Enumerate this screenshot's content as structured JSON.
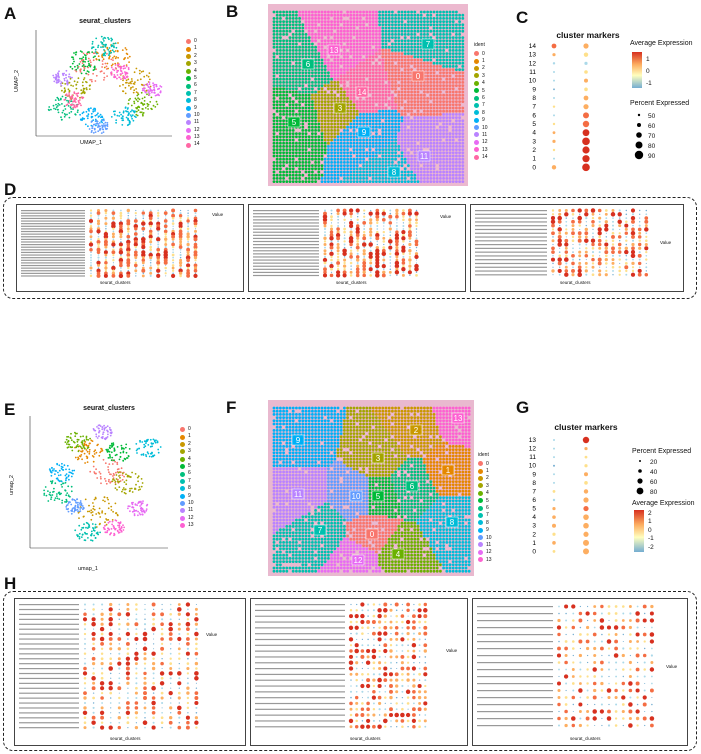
{
  "panels": {
    "A": {
      "letter": "A",
      "title": "seurat_clusters",
      "xlabel": "UMAP_1",
      "ylabel": "UMAP_2",
      "xticks": [
        "-8",
        "-4",
        "0",
        "4",
        "8"
      ],
      "yticks": [
        "10",
        "5",
        "0",
        "-5"
      ],
      "legend": [
        "0",
        "1",
        "2",
        "3",
        "4",
        "5",
        "6",
        "7",
        "8",
        "9",
        "10",
        "11",
        "12",
        "13",
        "14"
      ]
    },
    "B": {
      "letter": "B",
      "legend_title": "ident",
      "legend": [
        "0",
        "1",
        "2",
        "3",
        "4",
        "5",
        "6",
        "7",
        "8",
        "9",
        "10",
        "11",
        "12",
        "13",
        "14"
      ],
      "labels": [
        "13",
        "7",
        "0",
        "6",
        "14",
        "3",
        "5",
        "9",
        "11",
        "8"
      ]
    },
    "C": {
      "letter": "C",
      "title": "cluster markers",
      "ylabels": [
        "14",
        "13",
        "12",
        "11",
        "10",
        "9",
        "8",
        "7",
        "6",
        "5",
        "4",
        "3",
        "2",
        "1",
        "0"
      ],
      "genes": [
        "TSPAN4",
        "ITGA5"
      ],
      "legend_avg": "Average Expression",
      "avg_ticks": [
        "1",
        "0",
        "-1"
      ],
      "legend_pct": "Percent Expressed",
      "pct_ticks": [
        "50",
        "60",
        "70",
        "80",
        "90"
      ]
    },
    "D": {
      "letter": "D",
      "xlabel": "seurat_clusters",
      "ylabel": "Metabolic Pathway",
      "legend_value": "Value"
    },
    "E": {
      "letter": "E",
      "title": "seurat_clusters",
      "xlabel": "umap_1",
      "ylabel": "umap_2",
      "xticks": [
        "-5",
        "0",
        "5"
      ],
      "yticks": [
        "5",
        "0",
        "-5"
      ],
      "legend": [
        "0",
        "1",
        "2",
        "3",
        "4",
        "5",
        "6",
        "7",
        "8",
        "9",
        "10",
        "11",
        "12",
        "13"
      ]
    },
    "F": {
      "letter": "F",
      "legend_title": "ident",
      "legend": [
        "0",
        "1",
        "2",
        "3",
        "4",
        "5",
        "6",
        "7",
        "8",
        "9",
        "10",
        "11",
        "12",
        "13"
      ],
      "labels": [
        "9",
        "2",
        "13",
        "3",
        "10",
        "5",
        "6",
        "11",
        "1",
        "8",
        "7",
        "0",
        "4",
        "12"
      ]
    },
    "G": {
      "letter": "G",
      "title": "cluster markers",
      "ylabels": [
        "13",
        "12",
        "11",
        "10",
        "9",
        "8",
        "7",
        "6",
        "5",
        "4",
        "3",
        "2",
        "1",
        "0"
      ],
      "genes": [
        "TSPAN4",
        "ITGA5"
      ],
      "legend_pct": "Percent Expressed",
      "pct_ticks": [
        "20",
        "40",
        "60",
        "80"
      ],
      "legend_avg": "Average Expression",
      "avg_ticks": [
        "2",
        "1",
        "0",
        "-1",
        "-2"
      ]
    },
    "H": {
      "letter": "H",
      "xlabel": "seurat_clusters",
      "ylabel": "Metabolic Pathway",
      "legend_value": "Value"
    }
  },
  "colors": {
    "c0": "#f8766d",
    "c1": "#e58700",
    "c2": "#c99800",
    "c3": "#a3a500",
    "c4": "#6bb100",
    "c5": "#00ba38",
    "c6": "#00bf7d",
    "c7": "#00c0af",
    "c8": "#00bcd8",
    "c9": "#00b0f6",
    "c10": "#619cff",
    "c11": "#b983ff",
    "c12": "#e76bf3",
    "c13": "#fd61d1",
    "c14": "#ff67a4",
    "tissue": "#e8a7c6",
    "border": "#222222"
  }
}
